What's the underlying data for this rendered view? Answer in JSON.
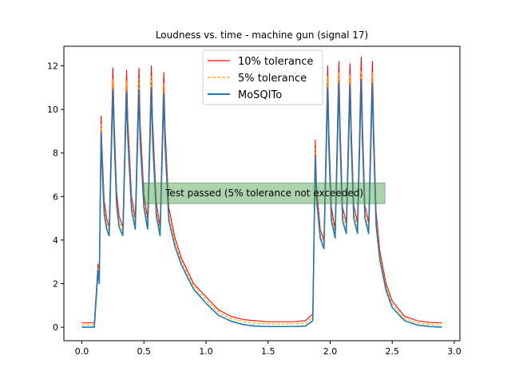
{
  "chart_data": {
    "type": "line",
    "title": "Loudness vs. time - machine gun (signal 17)",
    "xlabel": "",
    "ylabel": "",
    "xlim": [
      -0.145,
      3.045
    ],
    "ylim": [
      -0.62,
      12.9
    ],
    "xticks": [
      0.0,
      0.5,
      1.0,
      1.5,
      2.0,
      2.5,
      3.0
    ],
    "xtick_labels": [
      "0.0",
      "0.5",
      "1.0",
      "1.5",
      "2.0",
      "2.5",
      "3.0"
    ],
    "yticks": [
      0,
      2,
      4,
      6,
      8,
      10,
      12
    ],
    "ytick_labels": [
      "0",
      "2",
      "4",
      "6",
      "8",
      "10",
      "12"
    ],
    "grid": false,
    "legend": "top-center",
    "annotation": {
      "text": "Test passed (5% tolerance not exceeded)",
      "x": 1.47,
      "y": 6.15,
      "color": "#4a9e4a"
    },
    "series": [
      {
        "name": "10% tolerance",
        "color": "#ff0000",
        "style": "solid",
        "x": [
          0.0,
          0.1,
          0.13,
          0.14,
          0.155,
          0.16,
          0.18,
          0.2,
          0.22,
          0.25,
          0.26,
          0.28,
          0.3,
          0.33,
          0.36,
          0.37,
          0.4,
          0.43,
          0.46,
          0.47,
          0.5,
          0.53,
          0.56,
          0.57,
          0.6,
          0.63,
          0.66,
          0.67,
          0.7,
          0.75,
          0.8,
          0.85,
          0.9,
          1.0,
          1.1,
          1.2,
          1.3,
          1.4,
          1.5,
          1.6,
          1.7,
          1.8,
          1.86,
          1.88,
          1.89,
          1.92,
          1.95,
          1.98,
          1.99,
          2.01,
          2.04,
          2.07,
          2.08,
          2.1,
          2.13,
          2.16,
          2.17,
          2.19,
          2.22,
          2.25,
          2.26,
          2.28,
          2.31,
          2.34,
          2.35,
          2.37,
          2.4,
          2.45,
          2.5,
          2.6,
          2.7,
          2.8,
          2.9
        ],
        "y": [
          0.2,
          0.2,
          2.9,
          2.2,
          9.7,
          8.5,
          5.8,
          5.0,
          4.6,
          11.9,
          9.5,
          6.2,
          5.1,
          4.6,
          11.8,
          9.5,
          6.0,
          5.0,
          11.9,
          9.3,
          6.1,
          5.0,
          12.0,
          9.4,
          5.7,
          4.6,
          11.7,
          9.2,
          5.5,
          4.1,
          3.2,
          2.6,
          2.0,
          1.4,
          0.8,
          0.5,
          0.35,
          0.3,
          0.25,
          0.25,
          0.25,
          0.3,
          0.6,
          8.6,
          6.5,
          4.5,
          4.0,
          12.0,
          9.0,
          5.5,
          4.5,
          12.2,
          9.3,
          5.5,
          4.8,
          12.1,
          9.2,
          5.6,
          4.8,
          12.4,
          9.4,
          5.6,
          4.8,
          12.2,
          9.3,
          5.3,
          3.5,
          2.0,
          1.2,
          0.5,
          0.3,
          0.22,
          0.2
        ]
      },
      {
        "name": "5% tolerance",
        "color": "#ffa500",
        "style": "dashed",
        "x": [
          0.0,
          0.1,
          0.13,
          0.14,
          0.155,
          0.16,
          0.18,
          0.2,
          0.22,
          0.25,
          0.26,
          0.28,
          0.3,
          0.33,
          0.36,
          0.37,
          0.4,
          0.43,
          0.46,
          0.47,
          0.5,
          0.53,
          0.56,
          0.57,
          0.6,
          0.63,
          0.66,
          0.67,
          0.7,
          0.75,
          0.8,
          0.85,
          0.9,
          1.0,
          1.1,
          1.2,
          1.3,
          1.4,
          1.5,
          1.6,
          1.7,
          1.8,
          1.86,
          1.88,
          1.89,
          1.92,
          1.95,
          1.98,
          1.99,
          2.01,
          2.04,
          2.07,
          2.08,
          2.1,
          2.13,
          2.16,
          2.17,
          2.19,
          2.22,
          2.25,
          2.26,
          2.28,
          2.31,
          2.34,
          2.35,
          2.37,
          2.4,
          2.45,
          2.5,
          2.6,
          2.7,
          2.8,
          2.9
        ],
        "y": [
          0.1,
          0.1,
          2.75,
          2.1,
          9.3,
          8.1,
          5.5,
          4.75,
          4.4,
          11.4,
          9.1,
          5.9,
          4.85,
          4.4,
          11.3,
          9.1,
          5.7,
          4.75,
          11.4,
          8.9,
          5.8,
          4.75,
          11.5,
          9.0,
          5.4,
          4.4,
          11.2,
          8.8,
          5.2,
          3.9,
          3.05,
          2.45,
          1.9,
          1.25,
          0.7,
          0.4,
          0.25,
          0.18,
          0.15,
          0.15,
          0.15,
          0.18,
          0.45,
          8.2,
          6.2,
          4.3,
          3.8,
          11.5,
          8.6,
          5.2,
          4.3,
          11.7,
          8.9,
          5.2,
          4.55,
          11.6,
          8.8,
          5.3,
          4.55,
          11.8,
          9.0,
          5.3,
          4.55,
          11.7,
          8.9,
          5.0,
          3.3,
          1.85,
          1.05,
          0.4,
          0.2,
          0.12,
          0.1
        ]
      },
      {
        "name": "MoSQITo",
        "color": "#1f77b4",
        "style": "solid",
        "x": [
          0.0,
          0.1,
          0.13,
          0.14,
          0.155,
          0.16,
          0.18,
          0.2,
          0.22,
          0.25,
          0.26,
          0.28,
          0.3,
          0.33,
          0.36,
          0.37,
          0.4,
          0.43,
          0.46,
          0.47,
          0.5,
          0.53,
          0.56,
          0.57,
          0.6,
          0.63,
          0.66,
          0.67,
          0.7,
          0.75,
          0.8,
          0.85,
          0.9,
          1.0,
          1.1,
          1.2,
          1.3,
          1.4,
          1.5,
          1.6,
          1.7,
          1.8,
          1.86,
          1.88,
          1.89,
          1.92,
          1.95,
          1.98,
          1.99,
          2.01,
          2.04,
          2.07,
          2.08,
          2.1,
          2.13,
          2.16,
          2.17,
          2.19,
          2.22,
          2.25,
          2.26,
          2.28,
          2.31,
          2.34,
          2.35,
          2.37,
          2.4,
          2.45,
          2.5,
          2.6,
          2.7,
          2.8,
          2.9
        ],
        "y": [
          0.0,
          0.0,
          2.6,
          2.0,
          8.9,
          7.8,
          5.2,
          4.5,
          4.2,
          10.9,
          8.7,
          5.6,
          4.6,
          4.2,
          10.8,
          8.7,
          5.4,
          4.5,
          10.9,
          8.5,
          5.5,
          4.5,
          11.0,
          8.6,
          5.1,
          4.2,
          10.7,
          8.4,
          4.9,
          3.7,
          2.9,
          2.3,
          1.75,
          1.1,
          0.55,
          0.28,
          0.12,
          0.05,
          0.03,
          0.03,
          0.03,
          0.05,
          0.3,
          7.8,
          5.9,
          4.1,
          3.6,
          11.0,
          8.2,
          4.9,
          4.1,
          11.2,
          8.5,
          4.9,
          4.3,
          11.1,
          8.4,
          5.0,
          4.3,
          11.3,
          8.6,
          5.0,
          4.3,
          11.2,
          8.5,
          4.7,
          3.1,
          1.7,
          0.9,
          0.3,
          0.1,
          0.03,
          0.0
        ]
      }
    ]
  }
}
